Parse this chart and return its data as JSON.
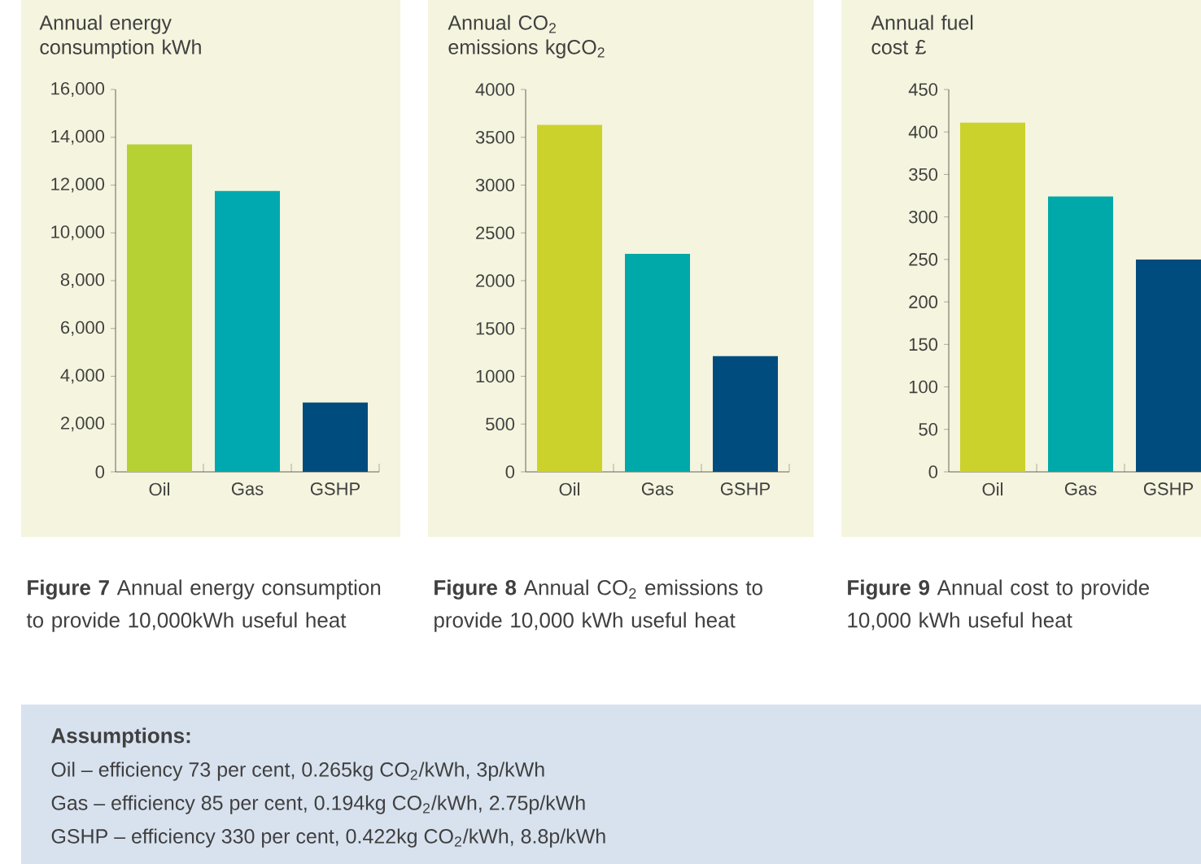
{
  "chart_data": [
    {
      "type": "bar",
      "ylabel": "Annual energy consumption kWh",
      "categories": [
        "Oil",
        "Gas",
        "GSHP"
      ],
      "values": [
        13700,
        11750,
        2900
      ],
      "colors": [
        "#b5d134",
        "#00a9b0",
        "#004c7e"
      ],
      "ylim": [
        0,
        16000
      ],
      "yticks": [
        0,
        {
          "value": 2000,
          "label": "2,000"
        },
        {
          "value": 4000,
          "label": "4,000"
        },
        {
          "value": 6000,
          "label": "6,000"
        },
        {
          "value": 8000,
          "label": "8,000"
        },
        {
          "value": 10000,
          "label": "10,000"
        },
        {
          "value": 12000,
          "label": "12,000"
        },
        {
          "value": 14000,
          "label": "14,000"
        },
        {
          "value": 16000,
          "label": "16,000"
        }
      ],
      "annotations": [
        "**Figure 7** Annual energy consumption to provide 10,000kWh useful heat"
      ]
    },
    {
      "type": "bar",
      "ylabel": "Annual CO$_{2}$ emissions kgCO$_{2}$",
      "categories": [
        "Oil",
        "Gas",
        "GSHP"
      ],
      "values": [
        3630,
        2280,
        1210
      ],
      "colors": [
        "#cbd22b",
        "#00a9a9",
        "#004c7e"
      ],
      "ylim": [
        0,
        4000
      ],
      "yticks": [
        0,
        500,
        1000,
        1500,
        2000,
        2500,
        3000,
        3500,
        4000
      ],
      "annotations": [
        "**Figure 8** Annual CO$_{2}$ emissions to provide 10,000 kWh useful heat"
      ]
    },
    {
      "type": "bar",
      "ylabel": "Annual fuel cost £",
      "categories": [
        "Oil",
        "Gas",
        "GSHP"
      ],
      "values": [
        411,
        324,
        250
      ],
      "colors": [
        "#cbd22b",
        "#00a9a9",
        "#004c7e"
      ],
      "ylim": [
        0,
        450
      ],
      "yticks": [
        0,
        50,
        100,
        150,
        200,
        250,
        300,
        350,
        400,
        450
      ],
      "annotations": [
        "**Figure 9** Annual cost to provide 10,000 kWh useful heat"
      ]
    },
    {
      "type": "other",
      "title": "Assumptions:",
      "annotations": [
        "Oil – efficiency 73 per cent, 0.265kg CO$_{2}$/kWh, 3p/kWh",
        "Gas – efficiency 85 per cent, 0.194kg CO$_{2}$/kWh, 2.75p/kWh",
        "GSHP – efficiency 330 per cent, 0.422kg CO$_{2}$/kWh, 8.8p/kWh"
      ]
    }
  ]
}
